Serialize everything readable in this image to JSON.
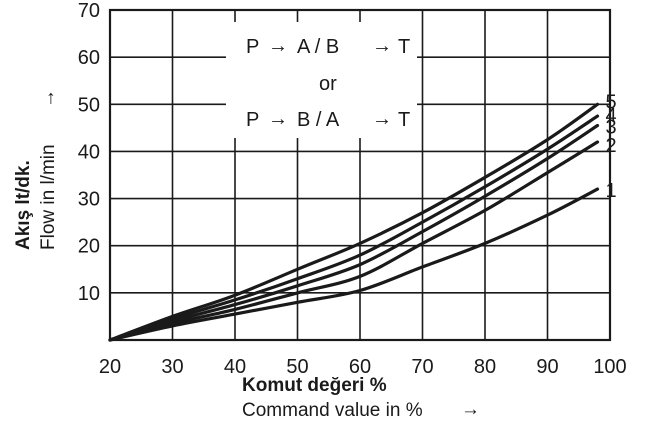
{
  "chart_data": {
    "type": "line",
    "xlabel_tr": "Komut değeri %",
    "xlabel_en": "Command value in %",
    "ylabel_tr": "Akış lt/dk.",
    "ylabel_en": "Flow in l/min",
    "xlim": [
      20,
      100
    ],
    "ylim": [
      0,
      70
    ],
    "x_ticks": [
      "20",
      "30",
      "40",
      "50",
      "60",
      "70",
      "80",
      "90",
      "100"
    ],
    "y_ticks": [
      "10",
      "20",
      "30",
      "40",
      "50",
      "60",
      "70"
    ],
    "grid": true,
    "annotation": {
      "line1": [
        "P",
        "A / B",
        "T"
      ],
      "middle": "or",
      "line2": [
        "P",
        "B / A",
        "T"
      ]
    },
    "series": [
      {
        "name": "1",
        "x": [
          20,
          30,
          40,
          50,
          60,
          70,
          80,
          90,
          98
        ],
        "y": [
          0,
          3,
          5.5,
          8,
          10.5,
          15.5,
          20.5,
          26.5,
          32
        ]
      },
      {
        "name": "2",
        "x": [
          20,
          30,
          40,
          50,
          60,
          70,
          80,
          90,
          98
        ],
        "y": [
          0,
          3.5,
          6.5,
          10,
          13.5,
          20.5,
          27.5,
          35.5,
          42
        ]
      },
      {
        "name": "3",
        "x": [
          20,
          30,
          40,
          50,
          60,
          70,
          80,
          90,
          98
        ],
        "y": [
          0,
          4,
          7.5,
          11.5,
          16,
          23,
          30.5,
          38.5,
          45.5
        ]
      },
      {
        "name": "4",
        "x": [
          20,
          30,
          40,
          50,
          60,
          70,
          80,
          90,
          98
        ],
        "y": [
          0,
          4.5,
          8.5,
          13,
          18,
          25,
          32.5,
          40.5,
          47.5
        ]
      },
      {
        "name": "5",
        "x": [
          20,
          30,
          40,
          50,
          60,
          70,
          80,
          90,
          98
        ],
        "y": [
          0,
          5,
          9.5,
          15,
          20.5,
          27,
          34.5,
          42.5,
          50
        ]
      }
    ]
  }
}
